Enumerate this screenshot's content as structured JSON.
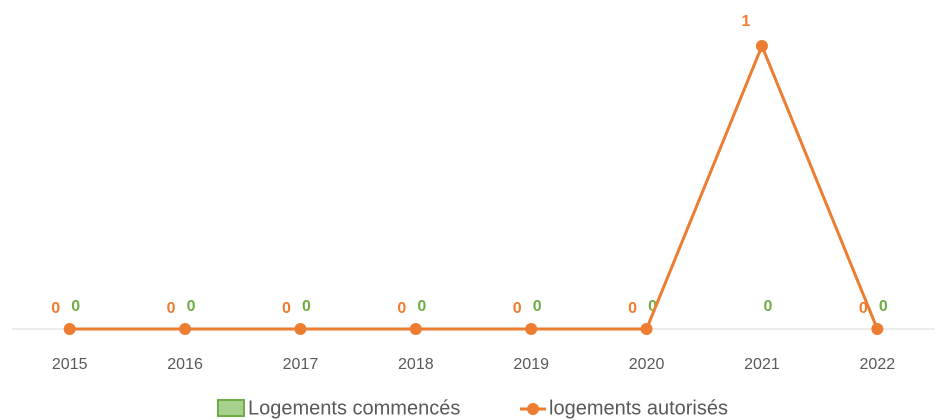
{
  "chart_data": {
    "type": "bar_line",
    "categories": [
      "2015",
      "2016",
      "2017",
      "2018",
      "2019",
      "2020",
      "2021",
      "2022"
    ],
    "series": [
      {
        "name": "Logements commencés",
        "type": "bar",
        "color": "#70ad47",
        "values": [
          0,
          0,
          0,
          0,
          0,
          0,
          0,
          0
        ]
      },
      {
        "name": "logements autorisés",
        "type": "line",
        "color": "#ed7d31",
        "values": [
          0,
          0,
          0,
          0,
          0,
          0,
          1,
          0
        ]
      }
    ],
    "ylim": [
      0,
      1
    ],
    "legend": "bottom"
  }
}
